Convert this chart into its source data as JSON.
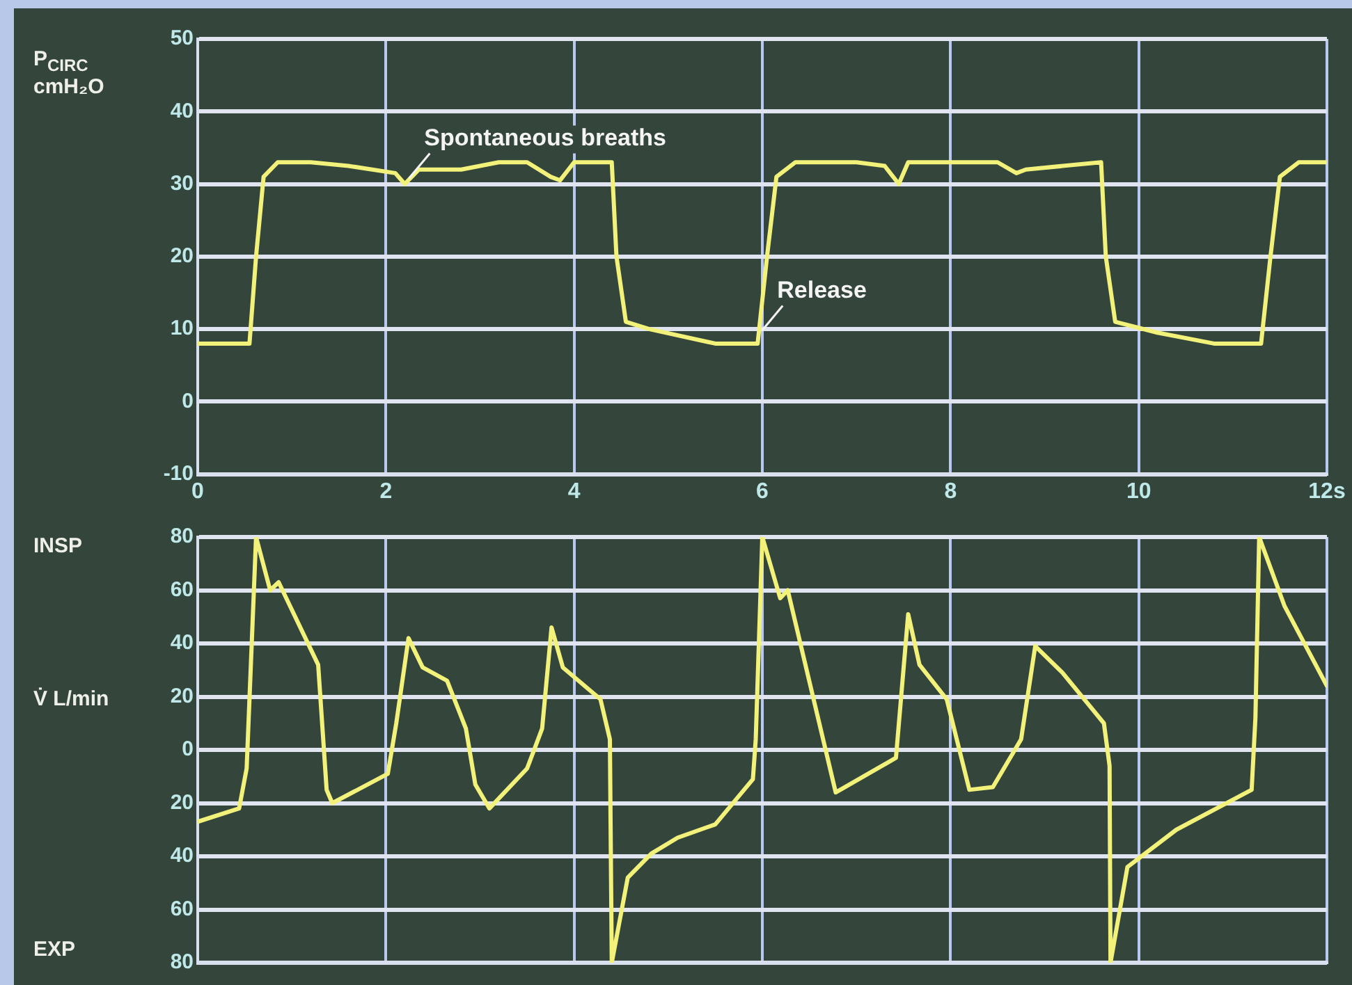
{
  "chart_data": [
    {
      "type": "line",
      "ylabel": "P$_{CIRC}$ cmH₂O",
      "xlim": [
        0,
        12
      ],
      "xticks": [
        0,
        2,
        4,
        6,
        8,
        10,
        {
          "value": 12,
          "label": "12s"
        }
      ],
      "ylim": [
        -10,
        50
      ],
      "yticks": [
        -10,
        0,
        10,
        20,
        30,
        40,
        50
      ],
      "grid": true,
      "marker": "none",
      "line_style": "solid",
      "annotations": [
        {
          "text": "Spontaneous breaths",
          "x": 2.2,
          "y": 30
        },
        {
          "text": "Release",
          "x": 5.95,
          "y": 9
        }
      ],
      "series": [
        {
          "color": "#f2f27a",
          "x": [
            0,
            0.55,
            0.62,
            0.7,
            0.85,
            1.2,
            1.6,
            2.1,
            2.2,
            2.35,
            2.8,
            3.2,
            3.5,
            3.75,
            3.85,
            4.0,
            4.4,
            4.45,
            4.55,
            4.8,
            5.5,
            5.95,
            6.05,
            6.15,
            6.35,
            7.0,
            7.3,
            7.45,
            7.55,
            8.0,
            8.5,
            8.7,
            8.8,
            9.6,
            9.65,
            9.75,
            10.2,
            10.8,
            11.3,
            11.4,
            11.5,
            11.7,
            12
          ],
          "values": [
            8,
            8,
            20,
            31,
            33,
            33,
            32.5,
            31.5,
            30,
            32,
            32,
            33,
            33,
            31,
            30.5,
            33,
            33,
            20,
            11,
            10,
            8,
            8,
            20,
            31,
            33,
            33,
            32.5,
            30,
            33,
            33,
            33,
            31.5,
            32,
            33,
            20,
            11,
            9.5,
            8,
            8,
            20,
            31,
            33,
            33
          ]
        }
      ]
    },
    {
      "type": "line",
      "ylabel": "V̇ L/min",
      "xlim": [
        0,
        12
      ],
      "xticks": [
        0,
        2,
        4,
        6,
        8,
        10,
        12
      ],
      "ylim": [
        -80,
        80
      ],
      "yticks": [
        {
          "value": -80,
          "label": "80"
        },
        {
          "value": -60,
          "label": "60"
        },
        {
          "value": -40,
          "label": "40"
        },
        {
          "value": -20,
          "label": "20"
        },
        0,
        20,
        40,
        60,
        80
      ],
      "tick_labels": "y",
      "grid": true,
      "marker": "none",
      "line_style": "solid",
      "annotations": [
        "INSP",
        "EXP"
      ],
      "series": [
        {
          "color": "#f2f27a",
          "x": [
            0,
            0.44,
            0.52,
            0.62,
            0.77,
            0.86,
            1.28,
            1.37,
            1.43,
            2.02,
            2.11,
            2.24,
            2.39,
            2.65,
            2.85,
            2.95,
            3.1,
            3.5,
            3.66,
            3.76,
            3.88,
            4.28,
            4.38,
            4.4,
            4.57,
            4.82,
            5.1,
            5.5,
            5.9,
            5.93,
            6.0,
            6.19,
            6.27,
            6.78,
            7.42,
            7.55,
            7.67,
            7.96,
            8.2,
            8.45,
            8.75,
            8.9,
            9.19,
            9.63,
            9.69,
            9.7,
            9.88,
            10.4,
            11.2,
            11.24,
            11.28,
            11.55,
            12.0
          ],
          "values": [
            -27,
            -22,
            -7,
            80,
            60,
            63,
            32,
            -15,
            -20,
            -9,
            10,
            42,
            31,
            26,
            8,
            -13,
            -22,
            -7,
            8,
            46,
            31,
            19,
            4,
            -80,
            -48,
            -39,
            -33,
            -28,
            -11,
            4,
            80,
            57,
            60,
            -16,
            -3,
            51,
            32,
            19,
            -15,
            -14,
            4,
            39,
            29,
            10,
            -6,
            -80,
            -44,
            -30,
            -15,
            12,
            80,
            54,
            24
          ]
        }
      ]
    }
  ]
}
